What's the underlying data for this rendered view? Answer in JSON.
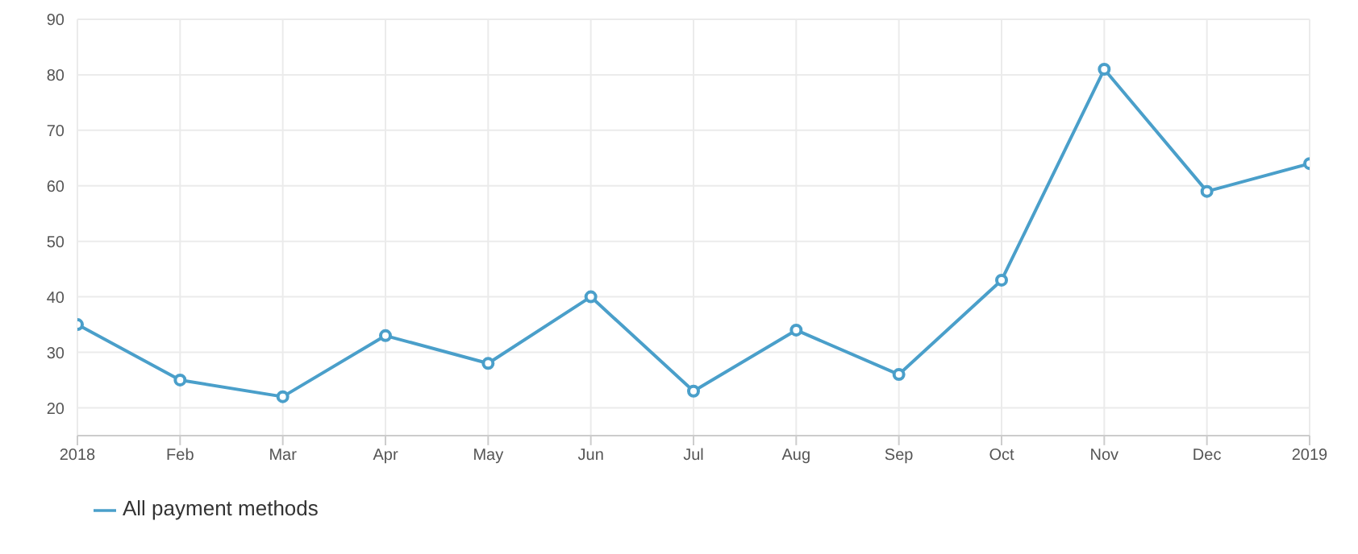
{
  "chart_data": {
    "type": "line",
    "categories": [
      "2018",
      "Feb",
      "Mar",
      "Apr",
      "May",
      "Jun",
      "Jul",
      "Aug",
      "Sep",
      "Oct",
      "Nov",
      "Dec",
      "2019"
    ],
    "series": [
      {
        "name": "All payment methods",
        "color": "#4a9fca",
        "values": [
          35,
          25,
          22,
          33,
          28,
          40,
          23,
          34,
          26,
          43,
          81,
          59,
          64
        ]
      }
    ],
    "ylim": [
      15,
      90
    ],
    "yticks": [
      20,
      30,
      40,
      50,
      60,
      70,
      80,
      90
    ],
    "grid": true,
    "legend": "bottom left",
    "marker": "circle"
  }
}
